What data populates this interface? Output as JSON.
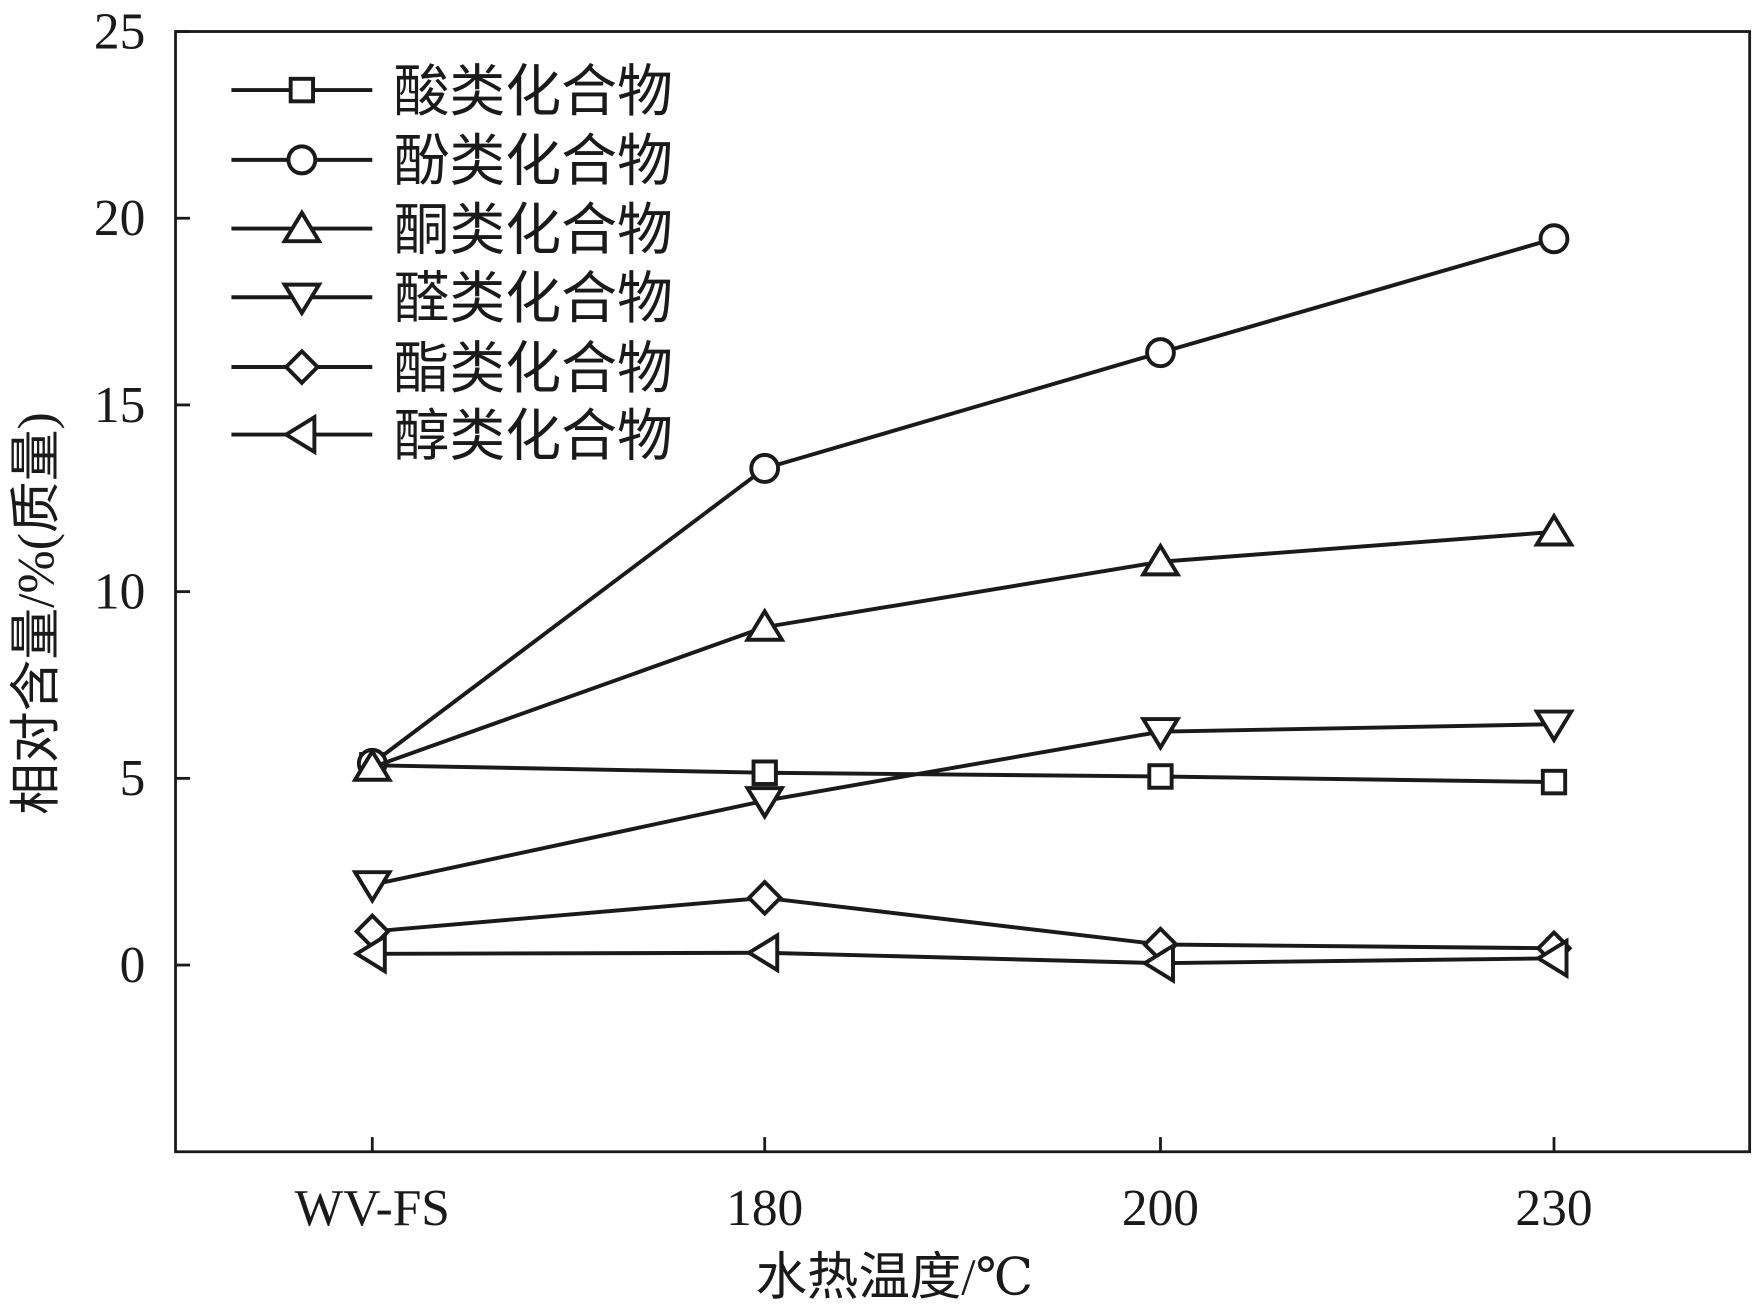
{
  "chart_data": {
    "type": "line",
    "title": "",
    "xlabel": "水热温度/℃",
    "ylabel": "相对含量/%(质量)",
    "categories": [
      "WV-FS",
      "180",
      "200",
      "230"
    ],
    "ylim": [
      -5,
      25
    ],
    "yticks": [
      0,
      5,
      10,
      15,
      20,
      25
    ],
    "grid": false,
    "legend_position": "top-left",
    "series": [
      {
        "name": "酸类化合物",
        "marker": "square",
        "values": [
          5.35,
          5.15,
          5.05,
          4.9
        ]
      },
      {
        "name": "酚类化合物",
        "marker": "circle",
        "values": [
          5.4,
          13.3,
          16.4,
          19.45
        ]
      },
      {
        "name": "酮类化合物",
        "marker": "triangle-up",
        "values": [
          5.3,
          9.05,
          10.8,
          11.6
        ]
      },
      {
        "name": "醛类化合物",
        "marker": "triangle-down",
        "values": [
          2.15,
          4.4,
          6.25,
          6.45
        ]
      },
      {
        "name": "酯类化合物",
        "marker": "diamond",
        "values": [
          0.9,
          1.8,
          0.55,
          0.45
        ]
      },
      {
        "name": "醇类化合物",
        "marker": "triangle-left",
        "values": [
          0.3,
          0.33,
          0.05,
          0.18
        ]
      }
    ]
  }
}
